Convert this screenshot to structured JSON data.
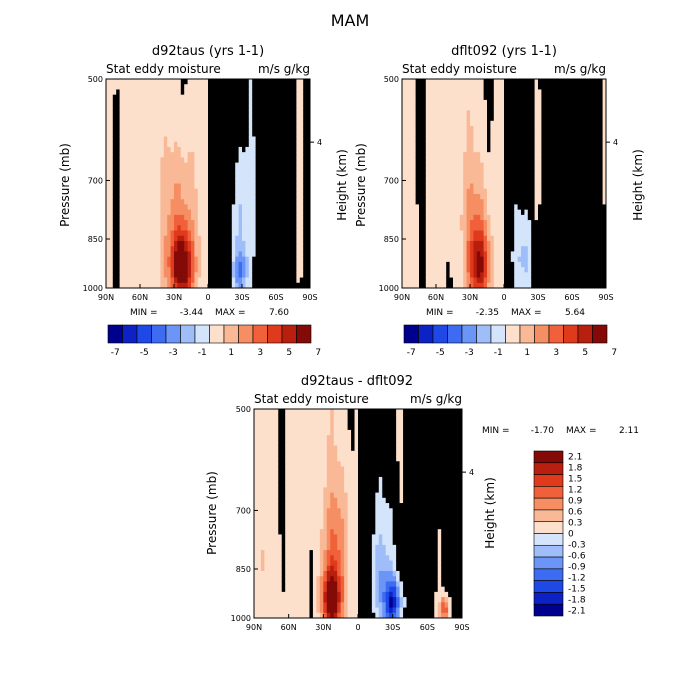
{
  "suptitle": "MAM",
  "colors": {
    "neg": [
      "#00008f",
      "#0c22c4",
      "#1f49e6",
      "#3d6cf2",
      "#6b95f7",
      "#9fbdf9",
      "#d3e4fb"
    ],
    "pos": [
      "#fde0cc",
      "#f9b896",
      "#f58e62",
      "#f0603a",
      "#e03a1d",
      "#b81f0f",
      "#830a06"
    ]
  },
  "chart_data": [
    {
      "type": "heatmap",
      "title": "d92taus (yrs 1-1)",
      "subtitle_left": "Stat eddy moisture",
      "subtitle_right": "m/s g/kg",
      "xlabel": "",
      "ylabel": "Pressure (mb)",
      "ylabel_right": "Height (km)",
      "x_ticks": [
        "90N",
        "60N",
        "30N",
        "0",
        "30S",
        "60S",
        "90S"
      ],
      "y_ticks": [
        "500",
        "700",
        "850",
        "1000"
      ],
      "right_ticks": [
        "4"
      ],
      "min_label": "MIN =",
      "min_value": "-3.44",
      "max_label": "MAX =",
      "max_value": "7.60",
      "colorbar_levels": [
        -7,
        -6,
        -5,
        -4,
        -3,
        -2,
        -1,
        0,
        1,
        2,
        3,
        4,
        5,
        6,
        7
      ],
      "colorbar_labels": [
        "-7",
        "-5",
        "-3",
        "-1",
        "1",
        "3",
        "5",
        "7"
      ],
      "features": [
        {
          "lat": 23,
          "p": 935,
          "value": 7.6,
          "lat_width": 10,
          "p_width": 110
        },
        {
          "lat": 25,
          "p": 760,
          "value": 2.0,
          "lat_width": 14,
          "p_width": 160
        },
        {
          "lat": -28,
          "p": 950,
          "value": -3.4,
          "lat_width": 7,
          "p_width": 70
        },
        {
          "lat": -28,
          "p": 800,
          "value": -1.8,
          "lat_width": 9,
          "p_width": 160
        }
      ]
    },
    {
      "type": "heatmap",
      "title": "dflt092 (yrs 1-1)",
      "subtitle_left": "Stat eddy moisture",
      "subtitle_right": "m/s g/kg",
      "xlabel": "",
      "ylabel": "Pressure (mb)",
      "ylabel_right": "Height (km)",
      "x_ticks": [
        "90N",
        "60N",
        "30N",
        "0",
        "30S",
        "60S",
        "90S"
      ],
      "y_ticks": [
        "500",
        "700",
        "850",
        "1000"
      ],
      "right_ticks": [
        "4"
      ],
      "min_label": "MIN =",
      "min_value": "-2.35",
      "max_label": "MAX =",
      "max_value": "5.64",
      "colorbar_levels": [
        -7,
        -6,
        -5,
        -4,
        -3,
        -2,
        -1,
        0,
        1,
        2,
        3,
        4,
        5,
        6,
        7
      ],
      "colorbar_labels": [
        "-7",
        "-5",
        "-3",
        "-1",
        "1",
        "3",
        "5",
        "7"
      ],
      "features": [
        {
          "lat": 22,
          "p": 930,
          "value": 5.6,
          "lat_width": 9,
          "p_width": 110
        },
        {
          "lat": 25,
          "p": 780,
          "value": 1.5,
          "lat_width": 13,
          "p_width": 150
        },
        {
          "lat": -18,
          "p": 900,
          "value": -1.5,
          "lat_width": 9,
          "p_width": 110
        }
      ]
    },
    {
      "type": "heatmap",
      "title": "d92taus - dflt092",
      "subtitle_left": "Stat eddy moisture",
      "subtitle_right": "m/s g/kg",
      "xlabel": "",
      "ylabel": "Pressure (mb)",
      "ylabel_right": "Height (km)",
      "x_ticks": [
        "90N",
        "60N",
        "30N",
        "0",
        "30S",
        "60S",
        "90S"
      ],
      "y_ticks": [
        "500",
        "700",
        "850",
        "1000"
      ],
      "right_ticks": [
        "4"
      ],
      "min_label": "MIN =",
      "min_value": "-1.70",
      "max_label": "MAX =",
      "max_value": "2.11",
      "colorbar_levels": [
        -2.1,
        -1.8,
        -1.5,
        -1.2,
        -0.9,
        -0.6,
        -0.3,
        0,
        0.3,
        0.6,
        0.9,
        1.2,
        1.5,
        1.8,
        2.1
      ],
      "colorbar_labels": [
        "2.1",
        "1.8",
        "1.5",
        "1.2",
        "0.9",
        "0.6",
        "0.3",
        "0",
        "-0.3",
        "-0.6",
        "-0.9",
        "-1.2",
        "-1.5",
        "-1.8",
        "-2.1"
      ],
      "features": [
        {
          "lat": 23,
          "p": 945,
          "value": 2.1,
          "lat_width": 8,
          "p_width": 90
        },
        {
          "lat": 20,
          "p": 800,
          "value": 0.7,
          "lat_width": 12,
          "p_width": 160
        },
        {
          "lat": -30,
          "p": 950,
          "value": -1.7,
          "lat_width": 7,
          "p_width": 70
        },
        {
          "lat": -20,
          "p": 880,
          "value": -0.6,
          "lat_width": 10,
          "p_width": 150
        },
        {
          "lat": -75,
          "p": 970,
          "value": 1.3,
          "lat_width": 4,
          "p_width": 40
        }
      ]
    }
  ]
}
